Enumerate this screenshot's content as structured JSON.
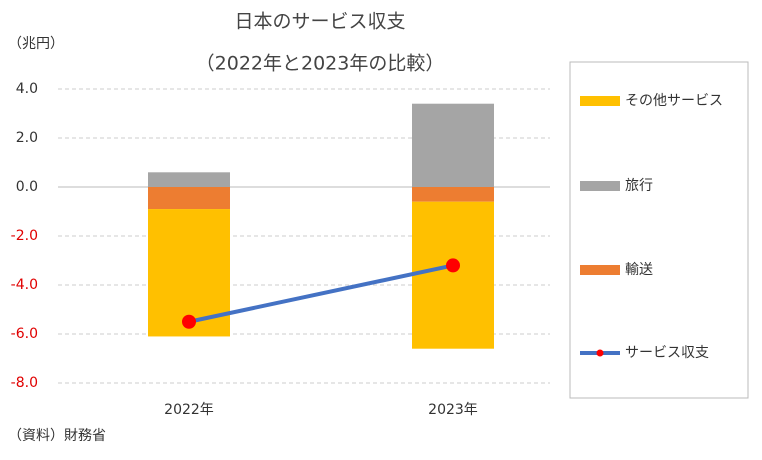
{
  "chart_data": {
    "type": "bar",
    "stacked": true,
    "title": "日本のサービス収支",
    "subtitle": "（2022年と2023年の比較）",
    "y_label": "（兆円）",
    "source": "（資料）財務省",
    "categories": [
      "2022年",
      "2023年"
    ],
    "series": [
      {
        "name": "その他サービス",
        "color": "#ffc000",
        "values": [
          -5.2,
          -6.0
        ]
      },
      {
        "name": "旅行",
        "color": "#a5a5a5",
        "values": [
          0.6,
          3.4
        ]
      },
      {
        "name": "輸送",
        "color": "#ed7d31",
        "values": [
          -0.9,
          -0.6
        ]
      },
      {
        "name": "サービス収支",
        "type": "line",
        "color": "#4472c4",
        "marker_color": "#ff0000",
        "values": [
          -5.5,
          -3.2
        ]
      }
    ],
    "ylim": [
      -8,
      4
    ],
    "yticks": [
      {
        "value": -8,
        "label": "-8.0"
      },
      {
        "value": -6,
        "label": "-6.0"
      },
      {
        "value": -4,
        "label": "-4.0"
      },
      {
        "value": -2,
        "label": "-2.0"
      },
      {
        "value": 0,
        "label": "0.0"
      },
      {
        "value": 2,
        "label": "2.0"
      },
      {
        "value": 4,
        "label": "4.0"
      }
    ],
    "grid": true,
    "legend": "right"
  }
}
